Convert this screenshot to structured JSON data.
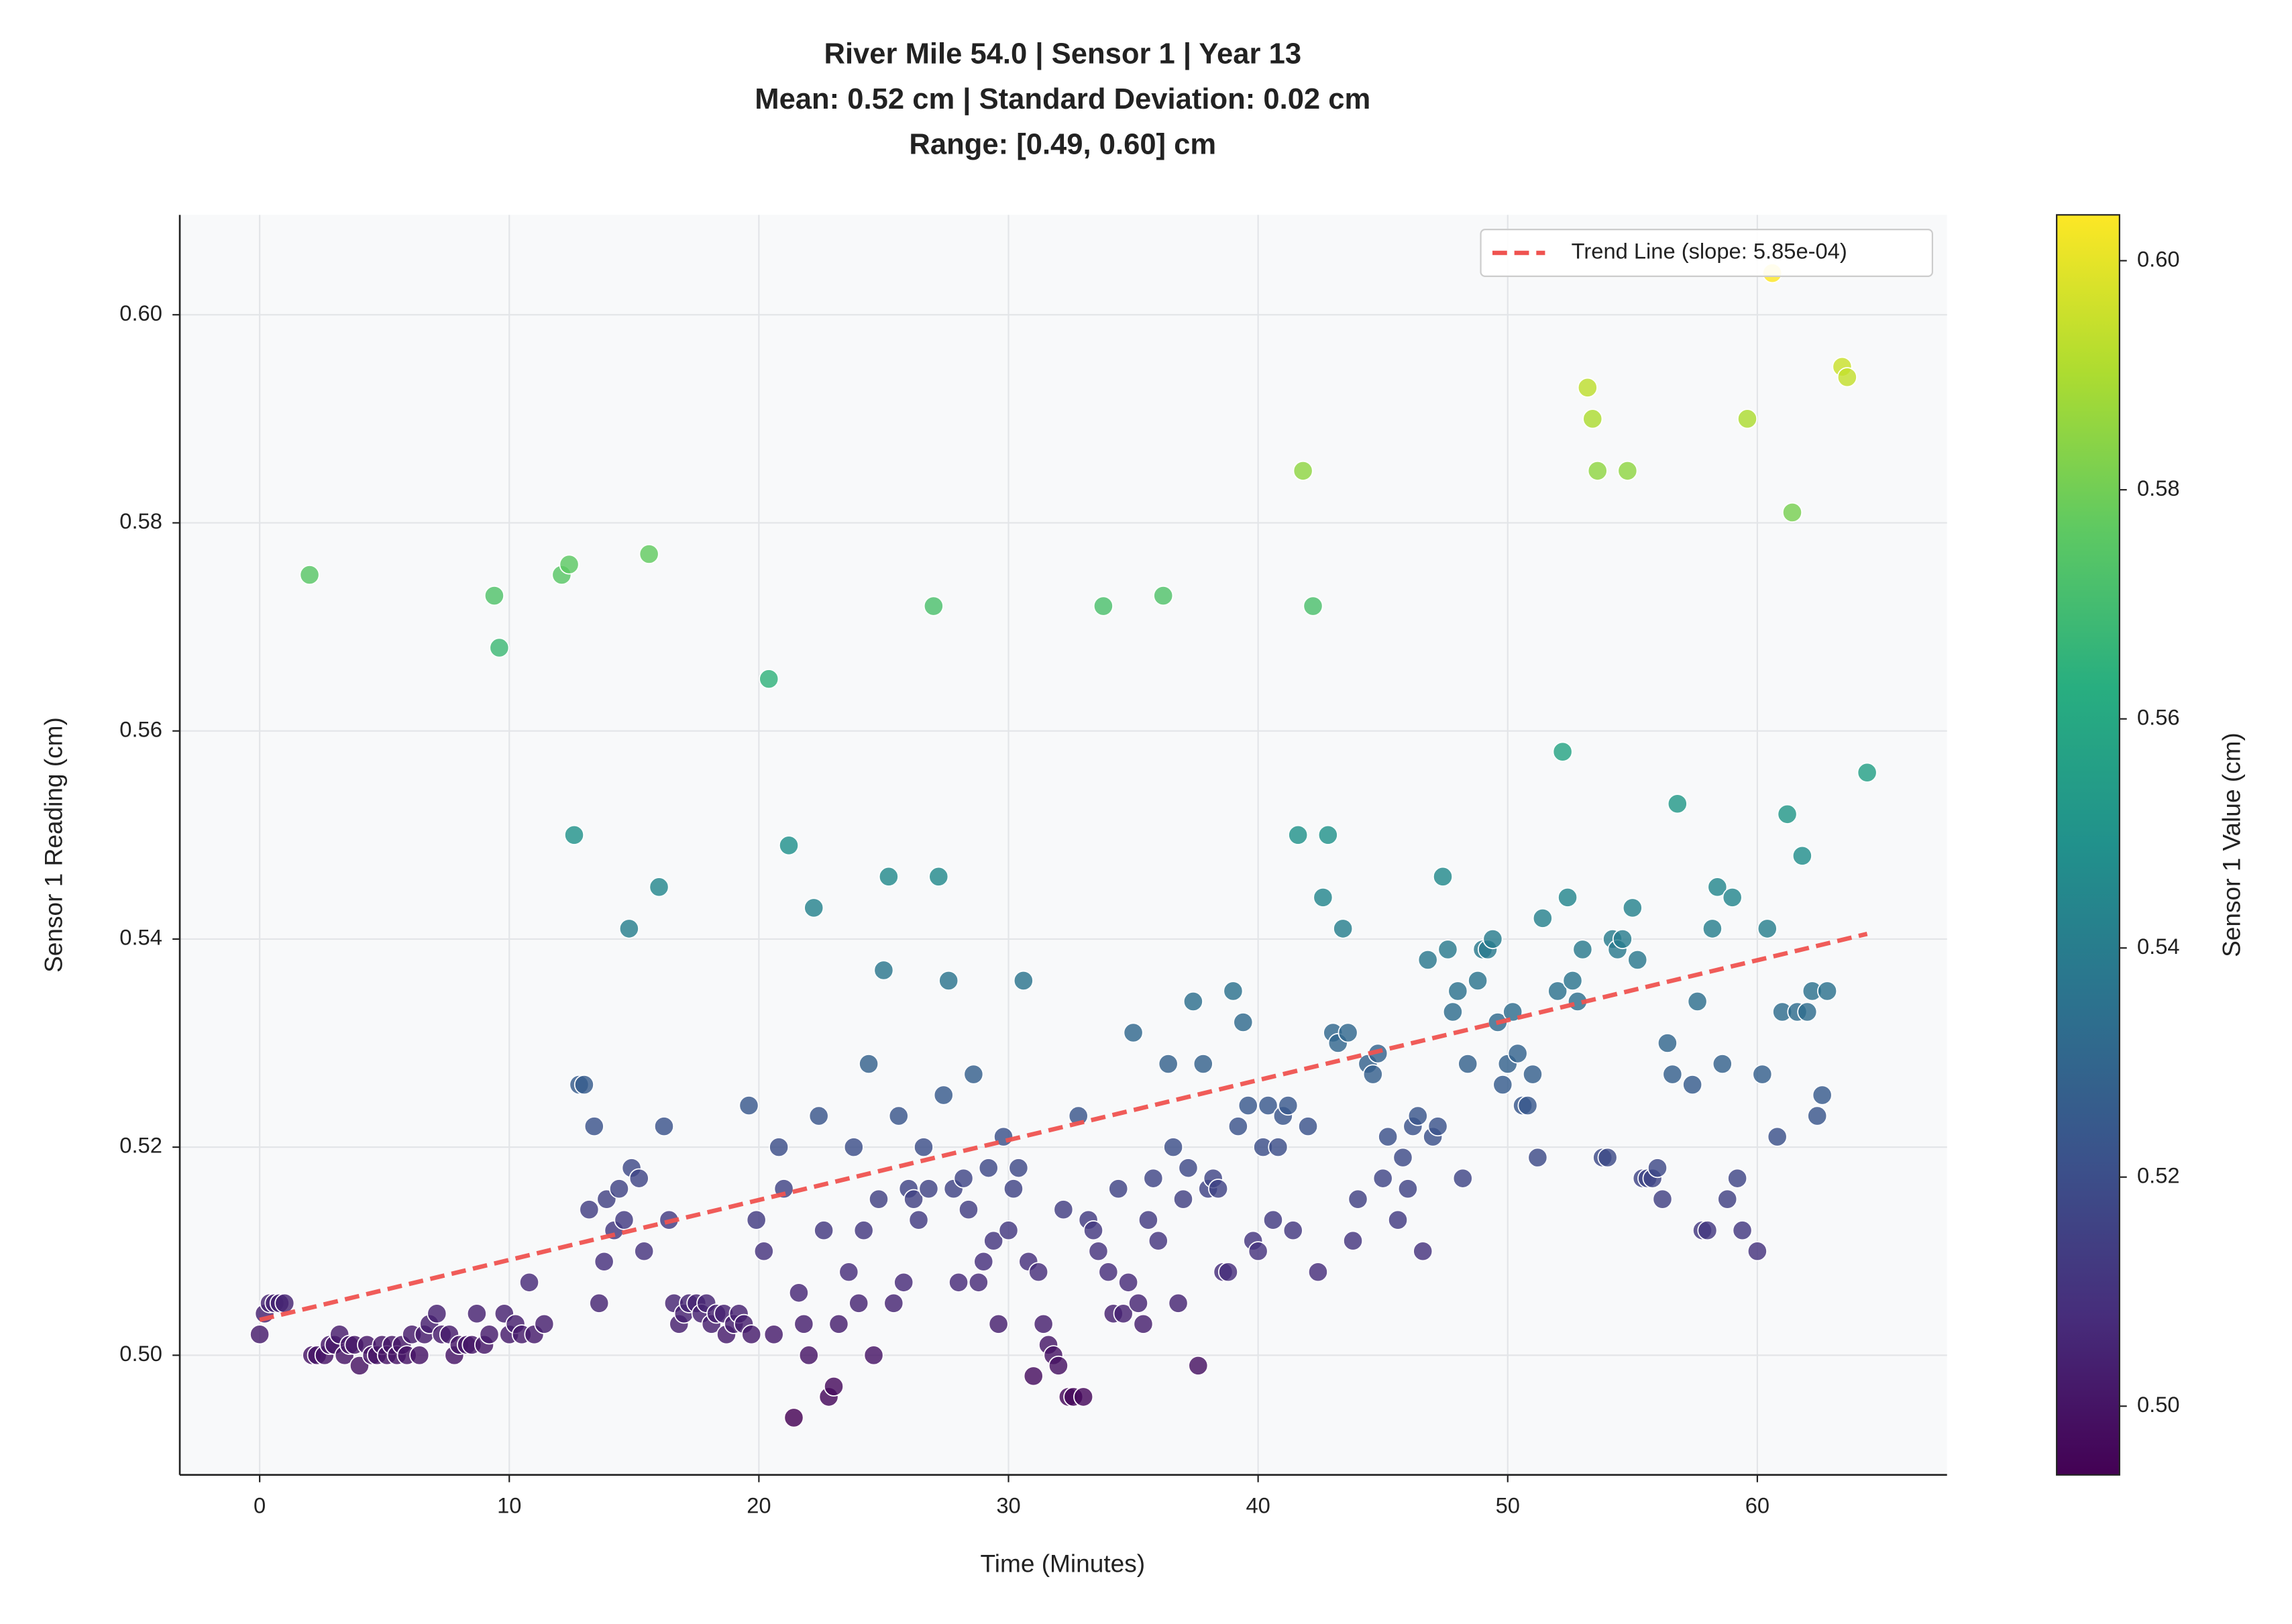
{
  "chart_data": {
    "type": "scatter",
    "title": [
      "River Mile 54.0 | Sensor 1 | Year 13",
      "Mean: 0.52 cm | Standard Deviation: 0.02 cm",
      "Range: [0.49, 0.60] cm"
    ],
    "xlabel": "Time (Minutes)",
    "ylabel": "Sensor 1 Reading (cm)",
    "colorbar_label": "Sensor 1 Value (cm)",
    "colormap": "viridis",
    "clim": [
      0.494,
      0.604
    ],
    "cticks": [
      {
        "value": 0.5,
        "label": "0.50"
      },
      0.52,
      0.54,
      0.56,
      0.58,
      {
        "value": 0.6,
        "label": "0.60"
      }
    ],
    "xlim": [
      -3.2,
      67.6
    ],
    "ylim": [
      0.4885,
      0.6096
    ],
    "xticks": [
      0,
      10,
      20,
      30,
      40,
      50,
      60
    ],
    "yticks": [
      {
        "value": 0.5,
        "label": "0.50"
      },
      0.52,
      0.54,
      0.56,
      0.58,
      {
        "value": 0.6,
        "label": "0.60"
      }
    ],
    "grid": true,
    "legend": "upper right",
    "x": [
      0,
      0.2,
      0.4,
      0.6,
      0.8,
      1.0,
      2.0,
      2.1,
      2.3,
      2.6,
      2.8,
      3.0,
      3.2,
      3.4,
      3.6,
      3.8,
      4.0,
      4.3,
      4.5,
      4.7,
      4.9,
      5.1,
      5.3,
      5.5,
      5.7,
      5.9,
      6.1,
      6.4,
      6.6,
      6.8,
      7.1,
      7.3,
      7.6,
      7.8,
      8.0,
      8.3,
      8.5,
      8.7,
      9.0,
      9.2,
      9.4,
      9.6,
      9.8,
      10.0,
      10.25,
      10.5,
      10.8,
      11.0,
      11.4,
      12.1,
      12.4,
      12.6,
      12.8,
      13.0,
      13.2,
      13.4,
      13.6,
      13.8,
      13.9,
      14.2,
      14.4,
      14.6,
      14.8,
      14.9,
      15.2,
      15.4,
      15.6,
      16.0,
      16.2,
      16.4,
      16.6,
      16.8,
      17.0,
      17.2,
      17.5,
      17.7,
      17.9,
      18.1,
      18.3,
      18.6,
      18.7,
      19.0,
      19.2,
      19.4,
      19.6,
      19.7,
      19.9,
      20.2,
      20.4,
      20.6,
      20.8,
      21.0,
      21.2,
      21.4,
      21.6,
      21.8,
      22.0,
      22.2,
      22.4,
      22.6,
      22.8,
      23.0,
      23.2,
      23.6,
      23.8,
      24.0,
      24.2,
      24.4,
      24.6,
      24.8,
      25.0,
      25.2,
      25.4,
      25.6,
      25.8,
      26.0,
      26.2,
      26.4,
      26.6,
      26.8,
      27.0,
      27.2,
      27.4,
      27.6,
      27.8,
      28.0,
      28.2,
      28.4,
      28.6,
      28.8,
      29.0,
      29.2,
      29.4,
      29.6,
      29.8,
      30.0,
      30.2,
      30.4,
      30.6,
      30.8,
      31.0,
      31.2,
      31.4,
      31.6,
      31.8,
      32.0,
      32.2,
      32.4,
      32.6,
      32.8,
      33.0,
      33.2,
      33.4,
      33.6,
      33.8,
      34.0,
      34.2,
      34.4,
      34.6,
      34.8,
      35.0,
      35.2,
      35.4,
      35.6,
      35.8,
      36.0,
      36.2,
      36.4,
      36.6,
      36.8,
      37.0,
      37.2,
      37.4,
      37.6,
      37.8,
      38.0,
      38.2,
      38.4,
      38.6,
      38.8,
      39.0,
      39.2,
      39.4,
      39.6,
      39.8,
      40.0,
      40.2,
      40.4,
      40.6,
      40.8,
      41.0,
      41.2,
      41.4,
      41.6,
      41.8,
      42.0,
      42.2,
      42.4,
      42.6,
      42.8,
      43.0,
      43.2,
      43.4,
      43.6,
      43.8,
      44.0,
      44.4,
      44.6,
      44.8,
      45.0,
      45.2,
      45.6,
      45.8,
      46.0,
      46.2,
      46.4,
      46.6,
      46.8,
      47.0,
      47.2,
      47.4,
      47.6,
      47.8,
      48.0,
      48.2,
      48.4,
      48.8,
      49.0,
      49.2,
      49.4,
      49.6,
      49.8,
      50.0,
      50.2,
      50.4,
      50.6,
      50.8,
      51.0,
      51.2,
      51.4,
      52.0,
      52.2,
      52.4,
      52.6,
      52.8,
      53.0,
      53.2,
      53.4,
      53.6,
      53.8,
      54.0,
      54.2,
      54.4,
      54.6,
      54.8,
      55.0,
      55.2,
      55.4,
      55.6,
      55.8,
      56.0,
      56.2,
      56.4,
      56.6,
      56.8,
      57.4,
      57.6,
      57.8,
      58.0,
      58.2,
      58.4,
      58.6,
      58.8,
      59.0,
      59.2,
      59.4,
      59.6,
      60.0,
      60.2,
      60.4,
      60.6,
      60.8,
      61.0,
      61.2,
      61.4,
      61.6,
      61.8,
      62.0,
      62.2,
      62.4,
      62.6,
      62.8,
      63.4,
      63.6,
      64.4
    ],
    "values": [
      0.502,
      0.504,
      0.505,
      0.505,
      0.505,
      0.505,
      0.575,
      0.5,
      0.5,
      0.5,
      0.501,
      0.501,
      0.502,
      0.5,
      0.501,
      0.501,
      0.499,
      0.501,
      0.5,
      0.5,
      0.501,
      0.5,
      0.501,
      0.5,
      0.501,
      0.5,
      0.502,
      0.5,
      0.502,
      0.503,
      0.504,
      0.502,
      0.502,
      0.5,
      0.501,
      0.501,
      0.501,
      0.504,
      0.501,
      0.502,
      0.573,
      0.568,
      0.504,
      0.502,
      0.503,
      0.502,
      0.507,
      0.502,
      0.503,
      0.575,
      0.576,
      0.55,
      0.526,
      0.526,
      0.514,
      0.522,
      0.505,
      0.509,
      0.515,
      0.512,
      0.516,
      0.513,
      0.541,
      0.518,
      0.517,
      0.51,
      0.577,
      0.545,
      0.522,
      0.513,
      0.505,
      0.503,
      0.504,
      0.505,
      0.505,
      0.504,
      0.505,
      0.503,
      0.504,
      0.504,
      0.502,
      0.503,
      0.504,
      0.503,
      0.524,
      0.502,
      0.513,
      0.51,
      0.565,
      0.502,
      0.52,
      0.516,
      0.549,
      0.494,
      0.506,
      0.503,
      0.5,
      0.543,
      0.523,
      0.512,
      0.496,
      0.497,
      0.503,
      0.508,
      0.52,
      0.505,
      0.512,
      0.528,
      0.5,
      0.515,
      0.537,
      0.546,
      0.505,
      0.523,
      0.507,
      0.516,
      0.515,
      0.513,
      0.52,
      0.516,
      0.572,
      0.546,
      0.525,
      0.536,
      0.516,
      0.507,
      0.517,
      0.514,
      0.527,
      0.507,
      0.509,
      0.518,
      0.511,
      0.503,
      0.521,
      0.512,
      0.516,
      0.518,
      0.536,
      0.509,
      0.498,
      0.508,
      0.503,
      0.501,
      0.5,
      0.499,
      0.514,
      0.496,
      0.496,
      0.523,
      0.496,
      0.513,
      0.512,
      0.51,
      0.572,
      0.508,
      0.504,
      0.516,
      0.504,
      0.507,
      0.531,
      0.505,
      0.503,
      0.513,
      0.517,
      0.511,
      0.573,
      0.528,
      0.52,
      0.505,
      0.515,
      0.518,
      0.534,
      0.499,
      0.528,
      0.516,
      0.517,
      0.516,
      0.508,
      0.508,
      0.535,
      0.522,
      0.532,
      0.524,
      0.511,
      0.51,
      0.52,
      0.524,
      0.513,
      0.52,
      0.523,
      0.524,
      0.512,
      0.55,
      0.585,
      0.522,
      0.572,
      0.508,
      0.544,
      0.55,
      0.531,
      0.53,
      0.541,
      0.531,
      0.511,
      0.515,
      0.528,
      0.527,
      0.529,
      0.517,
      0.521,
      0.513,
      0.519,
      0.516,
      0.522,
      0.523,
      0.51,
      0.538,
      0.521,
      0.522,
      0.546,
      0.539,
      0.533,
      0.535,
      0.517,
      0.528,
      0.536,
      0.539,
      0.539,
      0.54,
      0.532,
      0.526,
      0.528,
      0.533,
      0.529,
      0.524,
      0.524,
      0.527,
      0.519,
      0.542,
      0.535,
      0.558,
      0.544,
      0.536,
      0.534,
      0.539,
      0.593,
      0.59,
      0.585,
      0.519,
      0.519,
      0.54,
      0.539,
      0.54,
      0.585,
      0.543,
      0.538,
      0.517,
      0.517,
      0.517,
      0.518,
      0.515,
      0.53,
      0.527,
      0.553,
      0.526,
      0.534,
      0.512,
      0.512,
      0.541,
      0.545,
      0.528,
      0.515,
      0.544,
      0.517,
      0.512,
      0.59,
      0.51,
      0.527,
      0.541,
      0.604,
      0.521,
      0.533,
      0.552,
      0.581,
      0.533,
      0.548,
      0.533,
      0.535,
      0.523,
      0.525,
      0.535,
      0.595,
      0.594,
      0.556
    ],
    "trend": {
      "name": "Trend Line (slope: 5.85e-04)",
      "color": "#ef5350",
      "x": [
        0,
        64.4
      ],
      "values": [
        0.5034,
        0.5405
      ]
    }
  }
}
